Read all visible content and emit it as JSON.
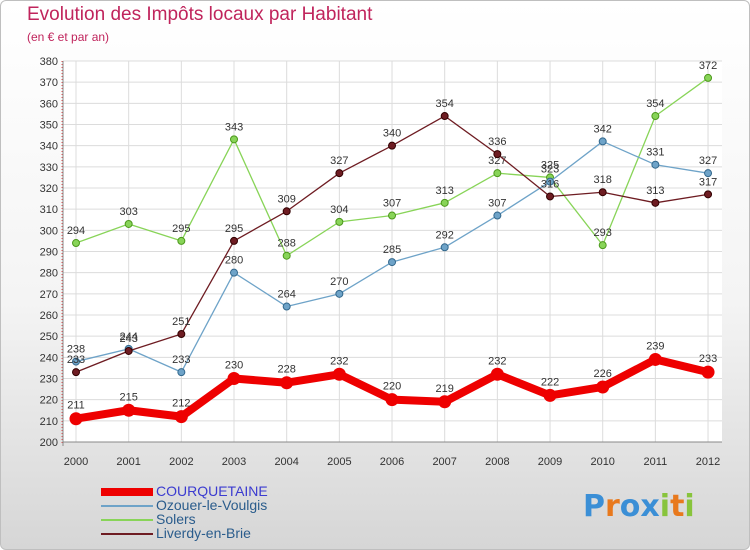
{
  "title": "Evolution des Impôts locaux par Habitant",
  "subtitle": "(en € et par an)",
  "chart_data": {
    "type": "line",
    "title": "Evolution des Impôts locaux par Habitant",
    "subtitle": "(en € et par an)",
    "xlabel": "",
    "ylabel": "",
    "categories": [
      "2000",
      "2001",
      "2002",
      "2003",
      "2004",
      "2005",
      "2006",
      "2007",
      "2008",
      "2009",
      "2010",
      "2011",
      "2012"
    ],
    "ylim": [
      200,
      380
    ],
    "yticks": [
      200,
      210,
      220,
      230,
      240,
      250,
      260,
      270,
      280,
      290,
      300,
      310,
      320,
      330,
      340,
      350,
      360,
      370,
      380
    ],
    "grid": true,
    "series": [
      {
        "name": "COURQUETAINE",
        "color": "#ee0000",
        "values": [
          211,
          215,
          212,
          230,
          228,
          232,
          220,
          219,
          232,
          222,
          226,
          239,
          233
        ]
      },
      {
        "name": "Ozouer-le-Voulgis",
        "color": "#6ea3c8",
        "values": [
          238,
          244,
          233,
          280,
          264,
          270,
          285,
          292,
          307,
          323,
          342,
          331,
          327
        ]
      },
      {
        "name": "Solers",
        "color": "#88d458",
        "values": [
          294,
          303,
          295,
          343,
          288,
          304,
          307,
          313,
          327,
          325,
          293,
          354,
          372
        ]
      },
      {
        "name": "Liverdy-en-Brie",
        "color": "#6e1c22",
        "values": [
          233,
          243,
          251,
          295,
          309,
          327,
          340,
          354,
          336,
          316,
          318,
          313,
          317
        ]
      }
    ]
  },
  "legend": [
    {
      "name": "COURQUETAINE",
      "color": "#ee0000"
    },
    {
      "name": "Ozouer-le-Voulgis",
      "color": "#6ea3c8"
    },
    {
      "name": "Solers",
      "color": "#88d458"
    },
    {
      "name": "Liverdy-en-Brie",
      "color": "#6e1c22"
    }
  ],
  "logo": {
    "text": "Proxiti",
    "letters": [
      "P",
      "r",
      "o",
      "x",
      "i",
      "t",
      "i"
    ],
    "colors": [
      "#3b8fd6",
      "#e8791d",
      "#3b8fd6",
      "#3b8fd6",
      "#88c43c",
      "#e8791d",
      "#88c43c"
    ]
  }
}
